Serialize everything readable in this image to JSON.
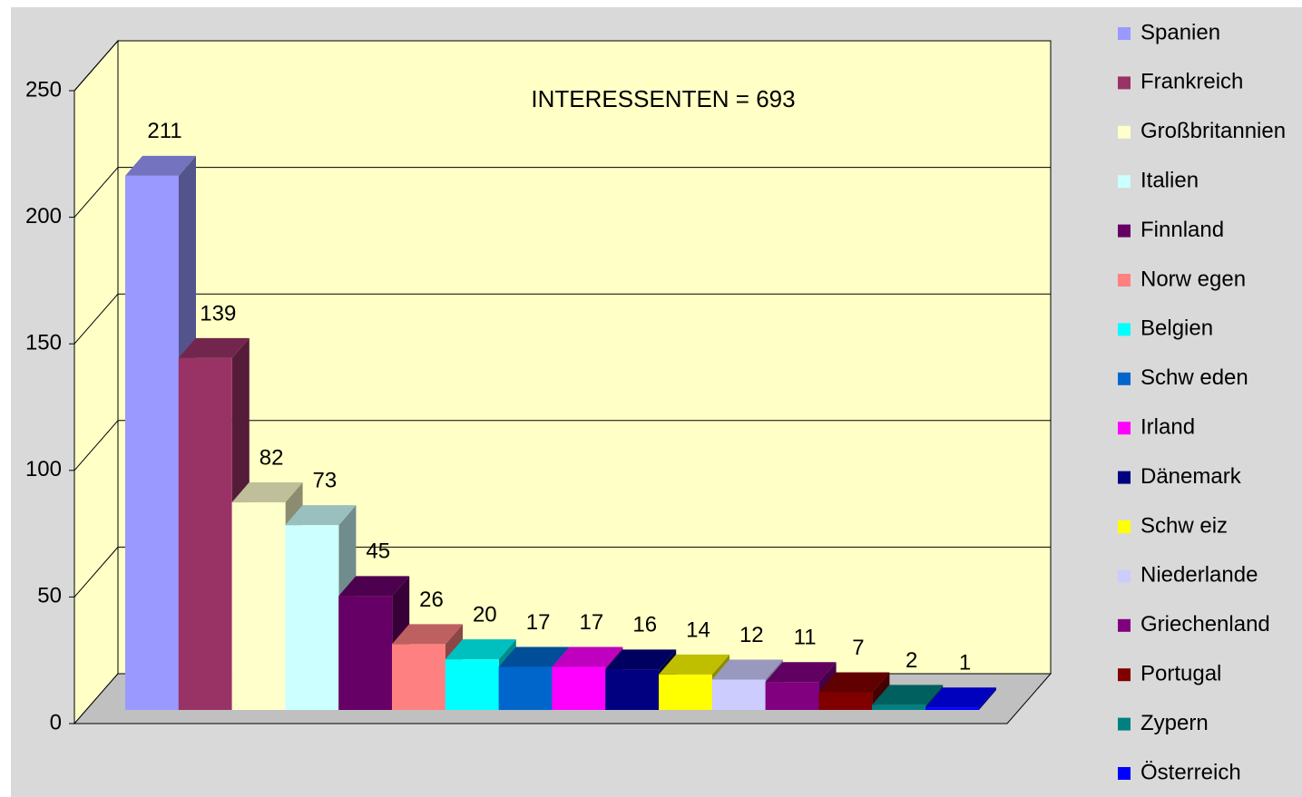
{
  "chart_data": {
    "type": "bar3d",
    "annotation": "INTERESSENTEN = 693",
    "categories": [
      "Spanien",
      "Frankreich",
      "Großbritannien",
      "Italien",
      "Finnland",
      "Norw egen",
      "Belgien",
      "Schw eden",
      "Irland",
      "Dänemark",
      "Schw eiz",
      "Niederlande",
      "Griechenland",
      "Portugal",
      "Zypern",
      "Österreich"
    ],
    "values": [
      211,
      139,
      82,
      73,
      45,
      26,
      20,
      17,
      17,
      16,
      14,
      12,
      11,
      7,
      2,
      1
    ],
    "colors": [
      "#9999ff",
      "#993366",
      "#ffffcc",
      "#ccffff",
      "#660066",
      "#ff8080",
      "#00ffff",
      "#0066cc",
      "#ff00ff",
      "#000080",
      "#ffff00",
      "#ccccff",
      "#800080",
      "#800000",
      "#008080",
      "#0000ff"
    ],
    "ylim": [
      0,
      250
    ],
    "yticks": [
      0,
      50,
      100,
      150,
      200,
      250
    ],
    "grid": true,
    "legend": "right"
  }
}
